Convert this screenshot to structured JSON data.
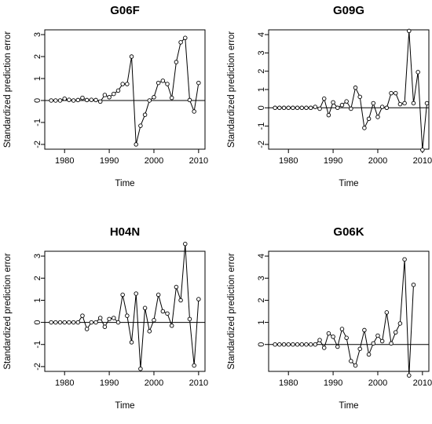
{
  "chart_data": [
    {
      "type": "line",
      "title": "G06F",
      "xlabel": "Time",
      "ylabel": "Standardized prediction error",
      "x_start": 1977,
      "xlim": [
        1977,
        2010
      ],
      "x_ticks": [
        1980,
        1990,
        2000,
        2010
      ],
      "ylim": [
        -2,
        3
      ],
      "y_ticks": [
        -2,
        -1,
        0,
        1,
        2,
        3
      ],
      "reference_line": 0,
      "values": [
        0,
        0,
        0,
        0.08,
        0.03,
        0,
        0.02,
        0.12,
        0.02,
        0.03,
        0.02,
        -0.05,
        0.25,
        0.15,
        0.3,
        0.45,
        0.75,
        0.75,
        2.0,
        -2.0,
        -1.15,
        -0.65,
        0.0,
        0.15,
        0.8,
        0.9,
        0.75,
        0.12,
        1.75,
        2.65,
        2.85,
        0.02,
        -0.5,
        0.8
      ]
    },
    {
      "type": "line",
      "title": "G09G",
      "xlabel": "Time",
      "ylabel": "Standardized prediction error",
      "x_start": 1977,
      "xlim": [
        1977,
        2010
      ],
      "x_ticks": [
        1980,
        1990,
        2000,
        2010
      ],
      "ylim": [
        -2,
        4
      ],
      "y_ticks": [
        -2,
        -1,
        0,
        1,
        2,
        3,
        4
      ],
      "reference_line": 0,
      "values": [
        0,
        0,
        0,
        0,
        0,
        0,
        0,
        0,
        0,
        0.05,
        -0.05,
        0.5,
        -0.4,
        0.3,
        0,
        0.15,
        0.35,
        -0.05,
        1.1,
        0.6,
        -1.1,
        -0.6,
        0.25,
        -0.5,
        0.05,
        0,
        0.8,
        0.8,
        0.2,
        0.25,
        4.2,
        0.25,
        1.95,
        -2.3,
        0.25
      ]
    },
    {
      "type": "line",
      "title": "H04N",
      "xlabel": "Time",
      "ylabel": "Standardized prediction error",
      "x_start": 1977,
      "xlim": [
        1977,
        2010
      ],
      "x_ticks": [
        1980,
        1990,
        2000,
        2010
      ],
      "ylim": [
        -2,
        3
      ],
      "y_ticks": [
        -2,
        -1,
        0,
        1,
        2,
        3
      ],
      "reference_line": 0,
      "values": [
        0,
        0,
        0,
        0,
        0,
        0,
        0,
        0.3,
        -0.3,
        0,
        0,
        0.2,
        -0.2,
        0.15,
        0.2,
        0,
        1.25,
        0.3,
        -0.9,
        1.3,
        -2.1,
        0.65,
        -0.4,
        0.1,
        1.25,
        0.5,
        0.4,
        -0.15,
        1.6,
        1.0,
        3.55,
        0.15,
        -1.95,
        1.05
      ]
    },
    {
      "type": "line",
      "title": "G06K",
      "xlabel": "Time",
      "ylabel": "Standardized prediction error",
      "x_start": 1977,
      "xlim": [
        1977,
        2010
      ],
      "x_ticks": [
        1980,
        1990,
        2000,
        2010
      ],
      "ylim": [
        -1,
        4
      ],
      "y_ticks": [
        0,
        1,
        2,
        3,
        4
      ],
      "reference_line": 0,
      "values": [
        0,
        0,
        0,
        0,
        0,
        0,
        0,
        0,
        0,
        0,
        0.2,
        -0.15,
        0.5,
        0.35,
        -0.1,
        0.7,
        0.3,
        -0.75,
        -0.95,
        -0.2,
        0.65,
        -0.45,
        0.05,
        0.4,
        0.15,
        1.45,
        0.05,
        0.55,
        0.95,
        3.85,
        -1.4,
        2.7
      ]
    }
  ]
}
